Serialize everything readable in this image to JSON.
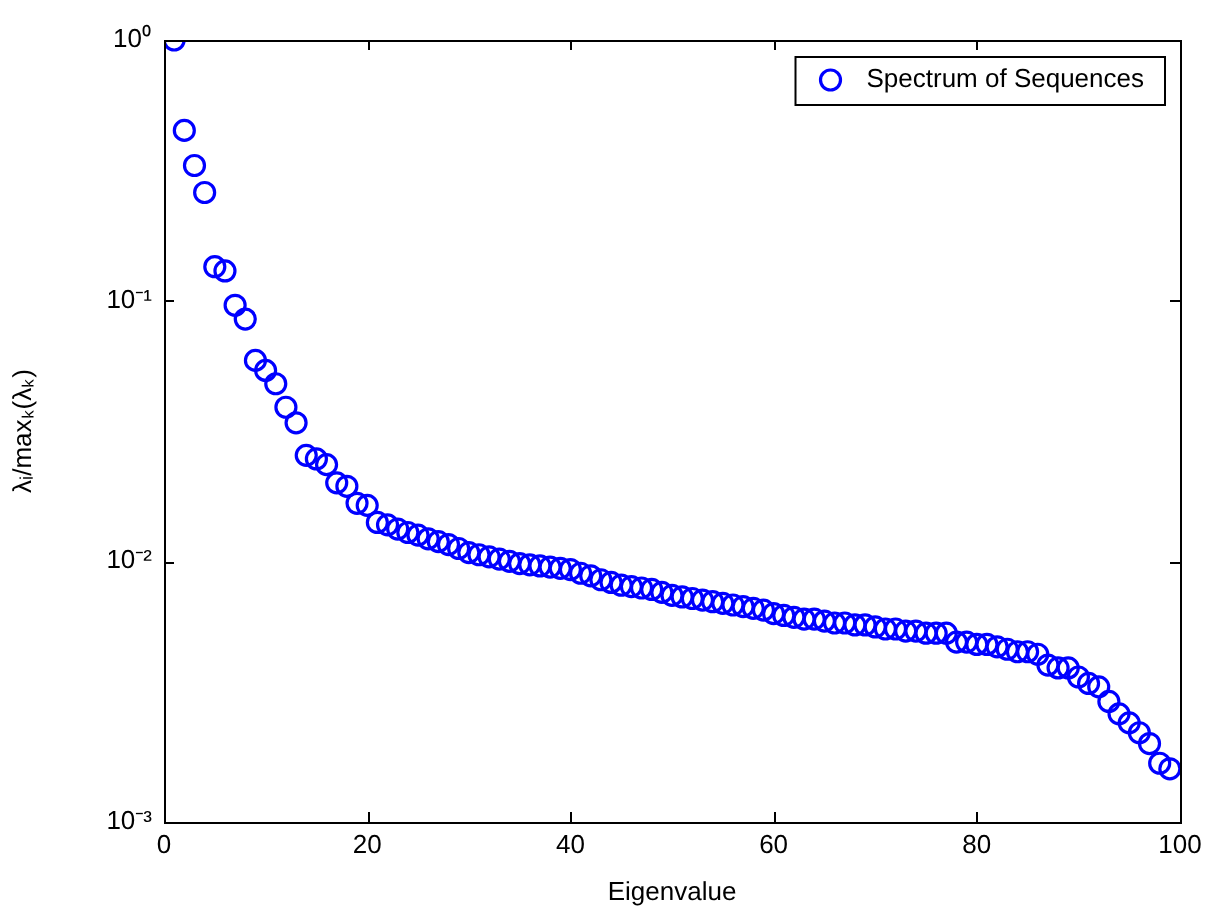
{
  "chart_data": {
    "type": "scatter",
    "xlabel": "Eigenvalue",
    "ylabel": "λᵢ/maxₖ(λₖ)",
    "x": [
      1,
      2,
      3,
      4,
      5,
      6,
      7,
      8,
      9,
      10,
      11,
      12,
      13,
      14,
      15,
      16,
      17,
      18,
      19,
      20,
      21,
      22,
      23,
      24,
      25,
      26,
      27,
      28,
      29,
      30,
      31,
      32,
      33,
      34,
      35,
      36,
      37,
      38,
      39,
      40,
      41,
      42,
      43,
      44,
      45,
      46,
      47,
      48,
      49,
      50,
      51,
      52,
      53,
      54,
      55,
      56,
      57,
      58,
      59,
      60,
      61,
      62,
      63,
      64,
      65,
      66,
      67,
      68,
      69,
      70,
      71,
      72,
      73,
      74,
      75,
      76,
      77,
      78,
      79,
      80,
      81,
      82,
      83,
      84,
      85,
      86,
      87,
      88,
      89,
      90,
      91,
      92,
      93,
      94,
      95,
      96,
      97,
      98,
      99
    ],
    "series": [
      {
        "name": "Spectrum of Sequences",
        "color": "#0000ff",
        "values": [
          1.0,
          0.45,
          0.33,
          0.26,
          0.135,
          0.13,
          0.096,
          0.085,
          0.059,
          0.054,
          0.048,
          0.039,
          0.034,
          0.0255,
          0.0247,
          0.0235,
          0.02,
          0.0194,
          0.0167,
          0.0164,
          0.0141,
          0.0138,
          0.0133,
          0.0129,
          0.0126,
          0.0122,
          0.0119,
          0.0116,
          0.0112,
          0.0108,
          0.0106,
          0.0104,
          0.0102,
          0.01,
          0.0098,
          0.0097,
          0.0096,
          0.0095,
          0.0094,
          0.0093,
          0.009,
          0.0088,
          0.0085,
          0.0083,
          0.0081,
          0.008,
          0.0079,
          0.0078,
          0.0076,
          0.0074,
          0.0073,
          0.0072,
          0.0071,
          0.007,
          0.0069,
          0.0068,
          0.0067,
          0.0066,
          0.0065,
          0.0063,
          0.0062,
          0.0061,
          0.006,
          0.006,
          0.0059,
          0.0058,
          0.0058,
          0.0057,
          0.0057,
          0.0056,
          0.0055,
          0.0055,
          0.0054,
          0.0054,
          0.0053,
          0.0053,
          0.0053,
          0.0049,
          0.0049,
          0.0048,
          0.0048,
          0.0047,
          0.0046,
          0.0045,
          0.0045,
          0.0044,
          0.004,
          0.0039,
          0.0039,
          0.0036,
          0.0034,
          0.0033,
          0.0029,
          0.0026,
          0.0024,
          0.0022,
          0.002,
          0.00168,
          0.0016
        ]
      }
    ],
    "xlim": [
      0,
      100
    ],
    "xticks": [
      0,
      20,
      40,
      60,
      80,
      100
    ],
    "ylim": [
      0.001,
      1
    ],
    "yticks": [
      {
        "value": 0.001,
        "label": "10⁻³"
      },
      {
        "value": 0.01,
        "label": "10⁻²"
      },
      {
        "value": 0.1,
        "label": "10⁻¹"
      },
      {
        "value": 1,
        "label": "10⁰"
      }
    ],
    "log": "y",
    "grid": false,
    "legend": "top right",
    "marker": "circle"
  }
}
